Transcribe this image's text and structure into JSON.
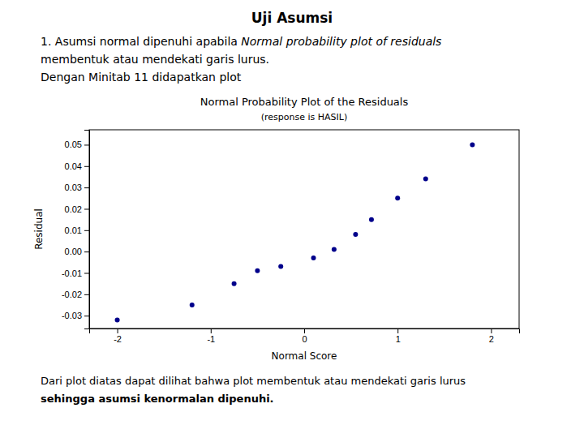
{
  "page": {
    "title": "Uji Asumsi",
    "intro": [
      "1. Asumsi normal dipenuhi apabila ",
      "Normal probability plot of residuals",
      "membentuk atau mendekati garis lurus.",
      "Dengan Minitab 11 didapatkan plot"
    ],
    "conclusion": [
      "Dari plot diatas dapat dilihat bahwa plot membentuk atau mendekati garis lurus",
      "sehingga asumsi kenormalan dipenuhi."
    ]
  },
  "chart_data": {
    "type": "scatter",
    "title": "Normal Probability Plot of the Residuals",
    "subtitle": "(response is HASIL)",
    "x_label": "Normal Score",
    "y_label": "Residual",
    "color": "#00008B",
    "x": [
      -2.0,
      -1.2,
      -0.75,
      -0.5,
      -0.25,
      0.1,
      0.32,
      0.55,
      0.72,
      1.0,
      1.3,
      1.8
    ],
    "values": [
      -0.032,
      -0.025,
      -0.015,
      -0.009,
      -0.007,
      -0.003,
      0.001,
      0.008,
      0.015,
      0.025,
      0.034,
      0.05
    ],
    "xlim": [
      -2.3,
      2.3
    ],
    "ylim": [
      -0.036,
      0.057
    ],
    "xticks": [
      -2,
      -1,
      0,
      1,
      2
    ],
    "yticks": [
      -0.03,
      -0.02,
      -0.01,
      {
        "value": 0,
        "label": "0.00"
      },
      0.01,
      0.02,
      0.03,
      0.04,
      0.05
    ],
    "grid": false
  }
}
